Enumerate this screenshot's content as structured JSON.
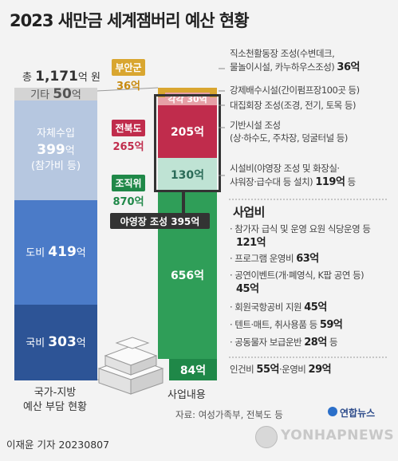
{
  "title": "2023 새만금 세계잼버리 예산 현황",
  "total": {
    "prefix": "총",
    "value": "1,171",
    "unit": "억 원"
  },
  "left_caption": [
    "국가-지방",
    "예산 부담 현황"
  ],
  "right_caption": "사업내용",
  "source": "자료: 여성가족부, 전북도 등",
  "credit": "이재윤 기자  20230807",
  "agency": "연합뉴스",
  "watermark": "YONHAPNEWS",
  "colors": {
    "bg": "#f3f3f3",
    "etc": "#d4d4d4",
    "self": "#b6c7e0",
    "province": "#4b7bc8",
    "national": "#2d5496",
    "buan": "#d9a630",
    "jeonbuk": "#c02c4c",
    "jeonbuk_light": "#e6a0a6",
    "committee": "#2f9e58",
    "committee_dark": "#1f8848",
    "committee_light": "#bfe3d4",
    "box": "#333333"
  },
  "chart_data": [
    {
      "type": "bar",
      "title": "국가-지방 예산 부담 현황",
      "unit": "억 원",
      "total": 1171,
      "categories": [
        "기타",
        "자체수입 (참가비 등)",
        "도비",
        "국비"
      ],
      "values": [
        50,
        399,
        419,
        303
      ]
    },
    {
      "type": "bar",
      "title": "사업내용",
      "unit": "억 원",
      "segments": [
        {
          "label": "부안군",
          "value": 36
        },
        {
          "label": "각각",
          "value": 30
        },
        {
          "label": "전북도",
          "value": 205
        },
        {
          "label": "조직위",
          "value": 130
        },
        {
          "label": "조직위",
          "value": 656
        },
        {
          "label": "조직위",
          "value": 84
        }
      ],
      "funders": [
        {
          "name": "부안군",
          "value": 36
        },
        {
          "name": "전북도",
          "value": 265
        },
        {
          "name": "조직위",
          "value": 870
        }
      ],
      "campsite_total": 395
    }
  ],
  "left_segments": [
    {
      "name": "기타",
      "value": "50",
      "unit": "억",
      "sub": ""
    },
    {
      "name": "자체수입",
      "value": "399",
      "unit": "억",
      "sub": "(참가비 등)"
    },
    {
      "name": "도비",
      "value": "419",
      "unit": "억",
      "sub": ""
    },
    {
      "name": "국비",
      "value": "303",
      "unit": "억",
      "sub": ""
    }
  ],
  "right_segments": [
    {
      "label": "",
      "value": ""
    },
    {
      "label": "각각 30억",
      "value": "30"
    },
    {
      "label": "205억",
      "value": "205"
    },
    {
      "label": "130억",
      "value": "130"
    },
    {
      "label": "656억",
      "value": "656"
    },
    {
      "label": "84억",
      "value": "84"
    }
  ],
  "orgs": [
    {
      "name": "부안군",
      "value": "36억"
    },
    {
      "name": "전북도",
      "value": "265억"
    },
    {
      "name": "조직위",
      "value": "870억"
    }
  ],
  "campsite_label": "야영장 조성 395억",
  "notes": {
    "n1": {
      "text": "직소천활동장 조성(수변데크,",
      "text2": "물놀이시설, 카누하우스조성)",
      "amount": "36억"
    },
    "n2": {
      "text": "강제배수시설(간이펌프장100곳 등)"
    },
    "n3": {
      "text": "대집회장 조성(조경, 전기, 토목 등)"
    },
    "n4": {
      "text": "기반시설 조성",
      "text2": "(상·하수도, 주차장, 덩굴터널 등)"
    },
    "n5": {
      "text": "시설비(야영장 조성 및 화장실·",
      "text2": "샤워장·급수대 등 설치)",
      "amount": "119억",
      "suffix": " 등"
    },
    "business_title": "사업비",
    "b1": {
      "text": "· 참가자 급식 및 운영 요원 식당운영 등",
      "amount": "121억"
    },
    "b2": {
      "text": "· 프로그램 운영비 ",
      "amount": "63억"
    },
    "b3": {
      "text": "· 공연이벤트(개·폐영식, K팝 공연 등)",
      "amount": "45억"
    },
    "b4": {
      "text": "· 회원국항공비 지원 ",
      "amount": "45억"
    },
    "b5": {
      "text": "· 텐트·매트, 취사용품 등 ",
      "amount": "59억"
    },
    "b6": {
      "text": "· 공동물자 보급운반 ",
      "amount": "28억",
      "suffix": " 등"
    },
    "b7": {
      "text": "인건비 ",
      "amount": "55억",
      "text2": "·운영비 ",
      "amount2": "29억"
    }
  }
}
